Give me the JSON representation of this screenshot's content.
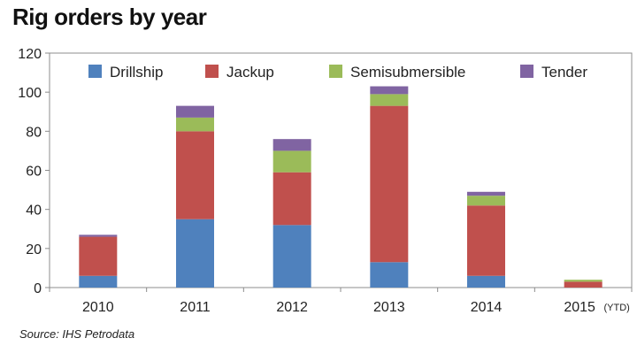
{
  "title": "Rig orders by year",
  "source": "Source: IHS Petrodata",
  "chart_data": {
    "type": "bar",
    "stacked": true,
    "title": "Rig orders by year",
    "xlabel": "",
    "ylabel": "",
    "ylim": [
      0,
      120
    ],
    "yticks": [
      0,
      20,
      40,
      60,
      80,
      100,
      120
    ],
    "categories": [
      "2010",
      "2011",
      "2012",
      "2013",
      "2014",
      "2015"
    ],
    "category_notes": [
      "",
      "",
      "",
      "",
      "",
      "(YTD)"
    ],
    "series": [
      {
        "name": "Drillship",
        "color": "#4f81bd",
        "values": [
          6,
          35,
          32,
          13,
          6,
          0
        ]
      },
      {
        "name": "Jackup",
        "color": "#c0504d",
        "values": [
          20,
          45,
          27,
          80,
          36,
          3
        ]
      },
      {
        "name": "Semisubmersible",
        "color": "#9bbb59",
        "values": [
          0,
          7,
          11,
          6,
          5,
          1
        ]
      },
      {
        "name": "Tender",
        "color": "#8064a2",
        "values": [
          1,
          6,
          6,
          4,
          2,
          0
        ]
      }
    ],
    "legend_position": "top",
    "grid": false
  }
}
